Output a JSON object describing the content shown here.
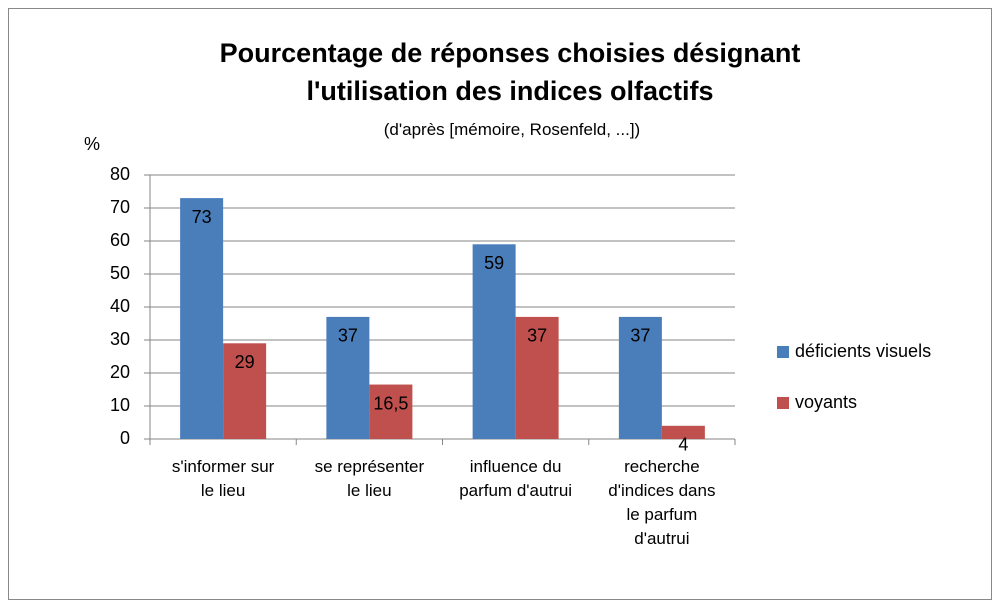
{
  "chart_data": {
    "type": "bar",
    "title": "Pourcentage de réponses choisies désignant l'utilisation des indices olfactifs",
    "subtitle": "(d'après [mémoire, Rosenfeld, ...])",
    "y_label": "%",
    "categories": [
      "s'informer sur le lieu",
      "se représenter le lieu",
      "influence du parfum d'autrui",
      "recherche d'indices dans le parfum d'autrui"
    ],
    "series": [
      {
        "name": "déficients visuels",
        "color": "#4a7ebb",
        "values": [
          73,
          37,
          59,
          37
        ]
      },
      {
        "name": "voyants",
        "color": "#c0504d",
        "values": [
          29,
          16.5,
          37,
          4
        ],
        "value_labels": [
          "29",
          "16,5",
          "37",
          "4"
        ]
      }
    ],
    "ylim": [
      0,
      80
    ],
    "yticks": [
      0,
      10,
      20,
      30,
      40,
      50,
      60,
      70,
      80
    ],
    "grid": true,
    "legend": "right"
  }
}
